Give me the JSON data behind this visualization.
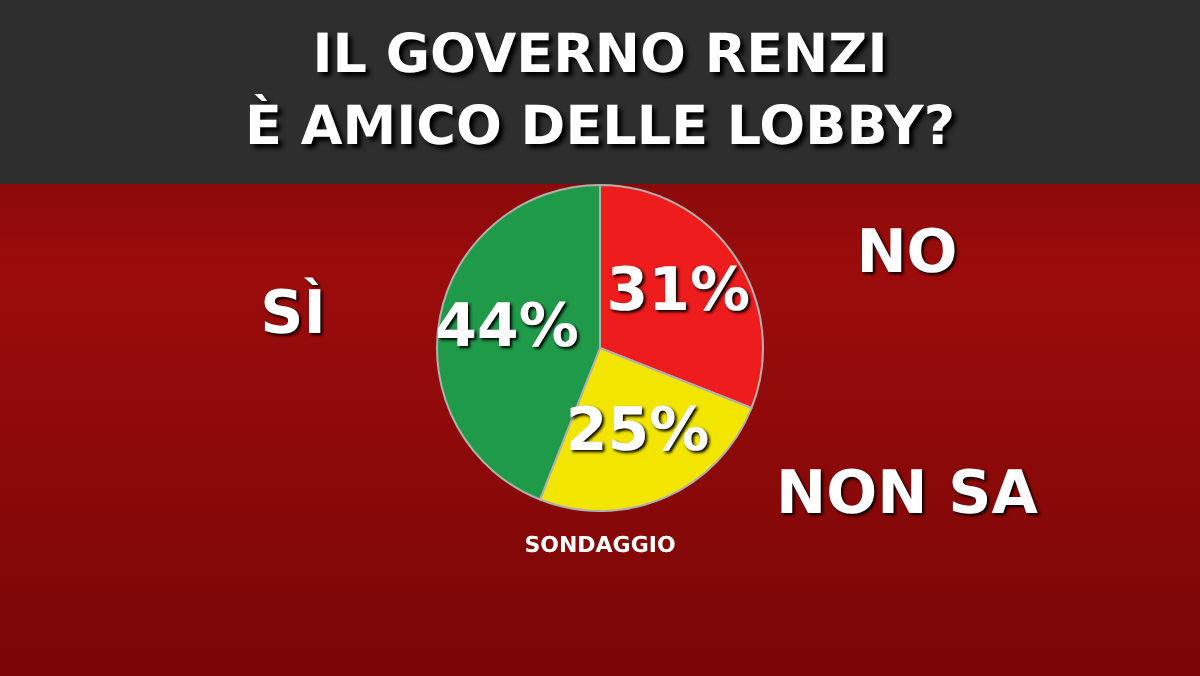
{
  "chart_data": {
    "type": "pie",
    "title": "IL GOVERNO RENZI\nÈ AMICO DELLE LOBBY?",
    "categories": [
      "NO",
      "NON SA",
      "SÌ"
    ],
    "values": [
      31,
      25,
      44
    ],
    "colors": [
      "#ee1c1c",
      "#f2e600",
      "#1f9a48"
    ],
    "value_labels": [
      "31%",
      "25%",
      "44%"
    ],
    "legend": false,
    "annotations": [
      "SONDAGGIO"
    ]
  }
}
